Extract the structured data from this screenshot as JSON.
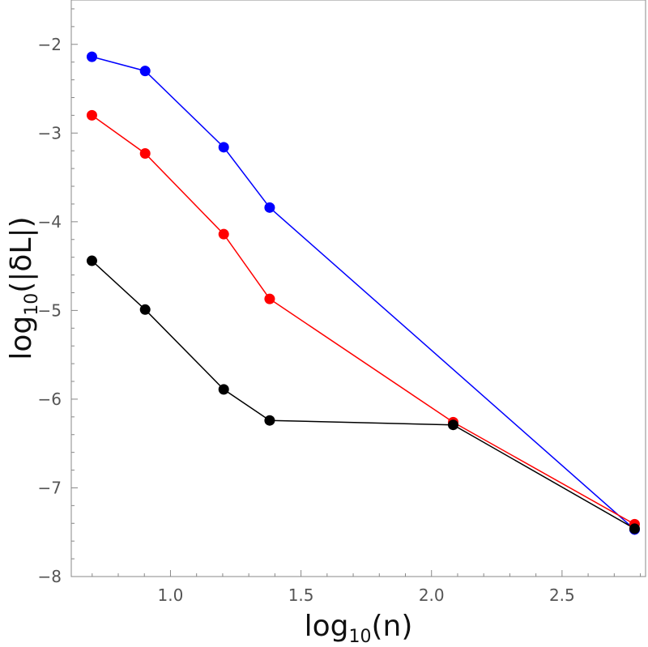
{
  "chart_data": {
    "type": "line",
    "title": "",
    "xlabel": {
      "base": "log",
      "sub": "10",
      "arg": "(n)"
    },
    "ylabel": {
      "base": "log",
      "sub": "10",
      "arg": "(|δL|)"
    },
    "xlim": [
      0.62,
      2.82
    ],
    "ylim": [
      -8.0,
      -1.5
    ],
    "grid": false,
    "x_ticks": [
      {
        "value": 1.0,
        "label": "1.0"
      },
      {
        "value": 1.5,
        "label": "1.5"
      },
      {
        "value": 2.0,
        "label": "2.0"
      },
      {
        "value": 2.5,
        "label": "2.5"
      }
    ],
    "y_ticks": [
      {
        "value": -2,
        "label": "−2"
      },
      {
        "value": -3,
        "label": "−3"
      },
      {
        "value": -4,
        "label": "−4"
      },
      {
        "value": -5,
        "label": "−5"
      },
      {
        "value": -6,
        "label": "−6"
      },
      {
        "value": -7,
        "label": "−7"
      },
      {
        "value": -8,
        "label": "−8"
      }
    ],
    "series": [
      {
        "name": "blue",
        "color": "#0000ff",
        "x": [
          0.699,
          0.903,
          1.204,
          1.38,
          2.778
        ],
        "y": [
          -2.14,
          -2.3,
          -3.16,
          -3.84,
          -7.47
        ]
      },
      {
        "name": "red",
        "color": "#ff0000",
        "x": [
          0.699,
          0.903,
          1.204,
          1.38,
          2.083,
          2.778
        ],
        "y": [
          -2.8,
          -3.23,
          -4.14,
          -4.87,
          -6.26,
          -7.41
        ]
      },
      {
        "name": "black",
        "color": "#000000",
        "x": [
          0.699,
          0.903,
          1.204,
          1.38,
          2.083,
          2.778
        ],
        "y": [
          -4.44,
          -4.99,
          -5.89,
          -6.24,
          -6.29,
          -7.46
        ]
      }
    ]
  }
}
